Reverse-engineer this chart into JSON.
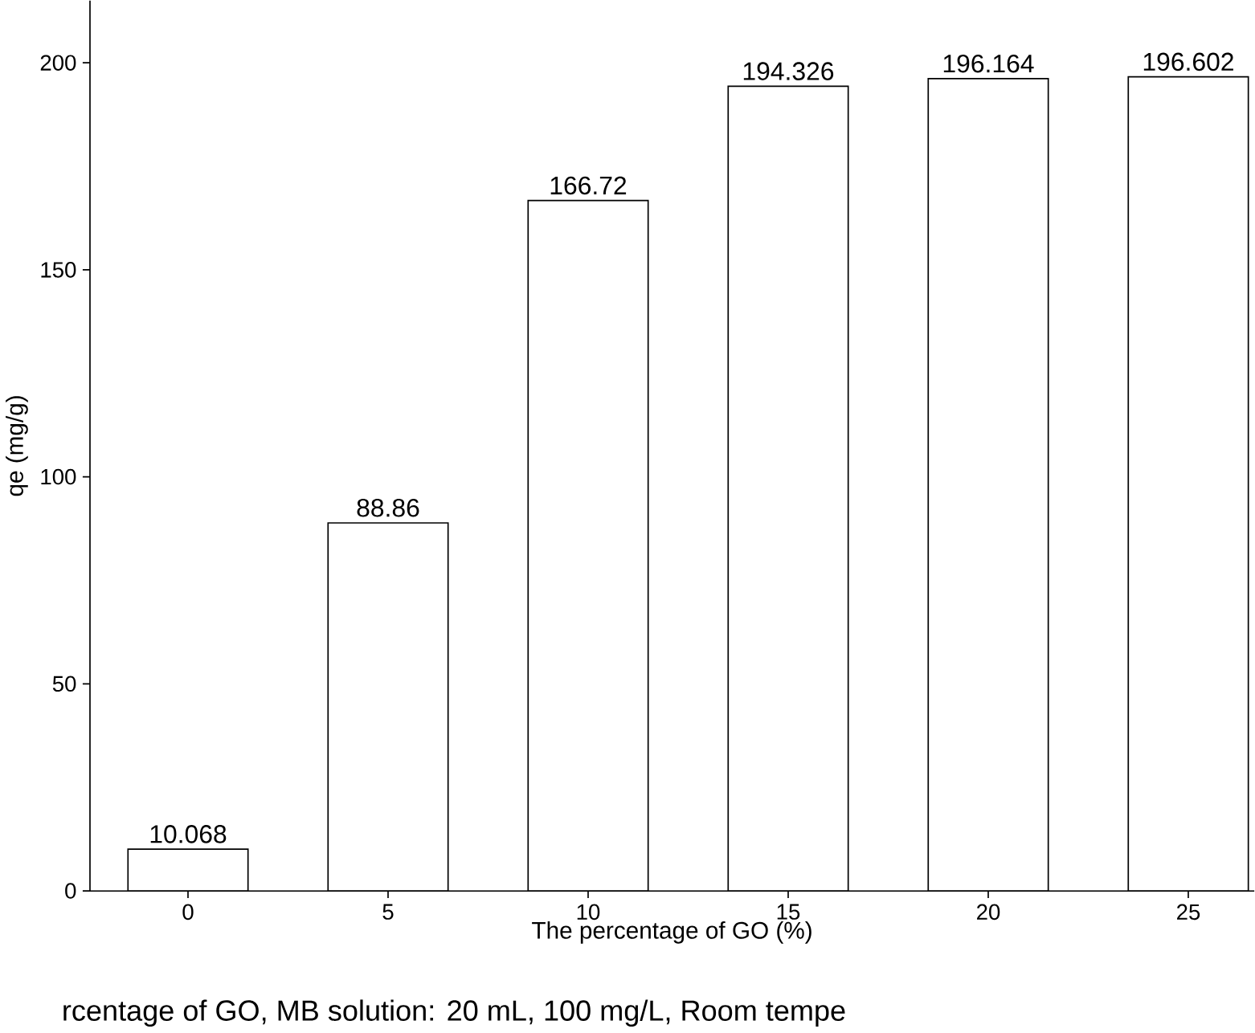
{
  "chart_data": {
    "type": "bar",
    "xlabel": "The percentage of GO (%)",
    "ylabel": "qe (mg/g)",
    "categories": [
      "0",
      "5",
      "10",
      "15",
      "20",
      "25"
    ],
    "values": [
      10.068,
      88.86,
      166.72,
      194.326,
      196.164,
      196.602
    ],
    "color": "#000000",
    "ylim": [
      0,
      215
    ],
    "yticks": [
      0,
      50,
      100,
      150,
      200
    ],
    "data_labels": true,
    "grid": false,
    "annotations": [
      "rcentage of GO, MB solution: 20 mL, 100 mg/L, Room tempe"
    ]
  }
}
